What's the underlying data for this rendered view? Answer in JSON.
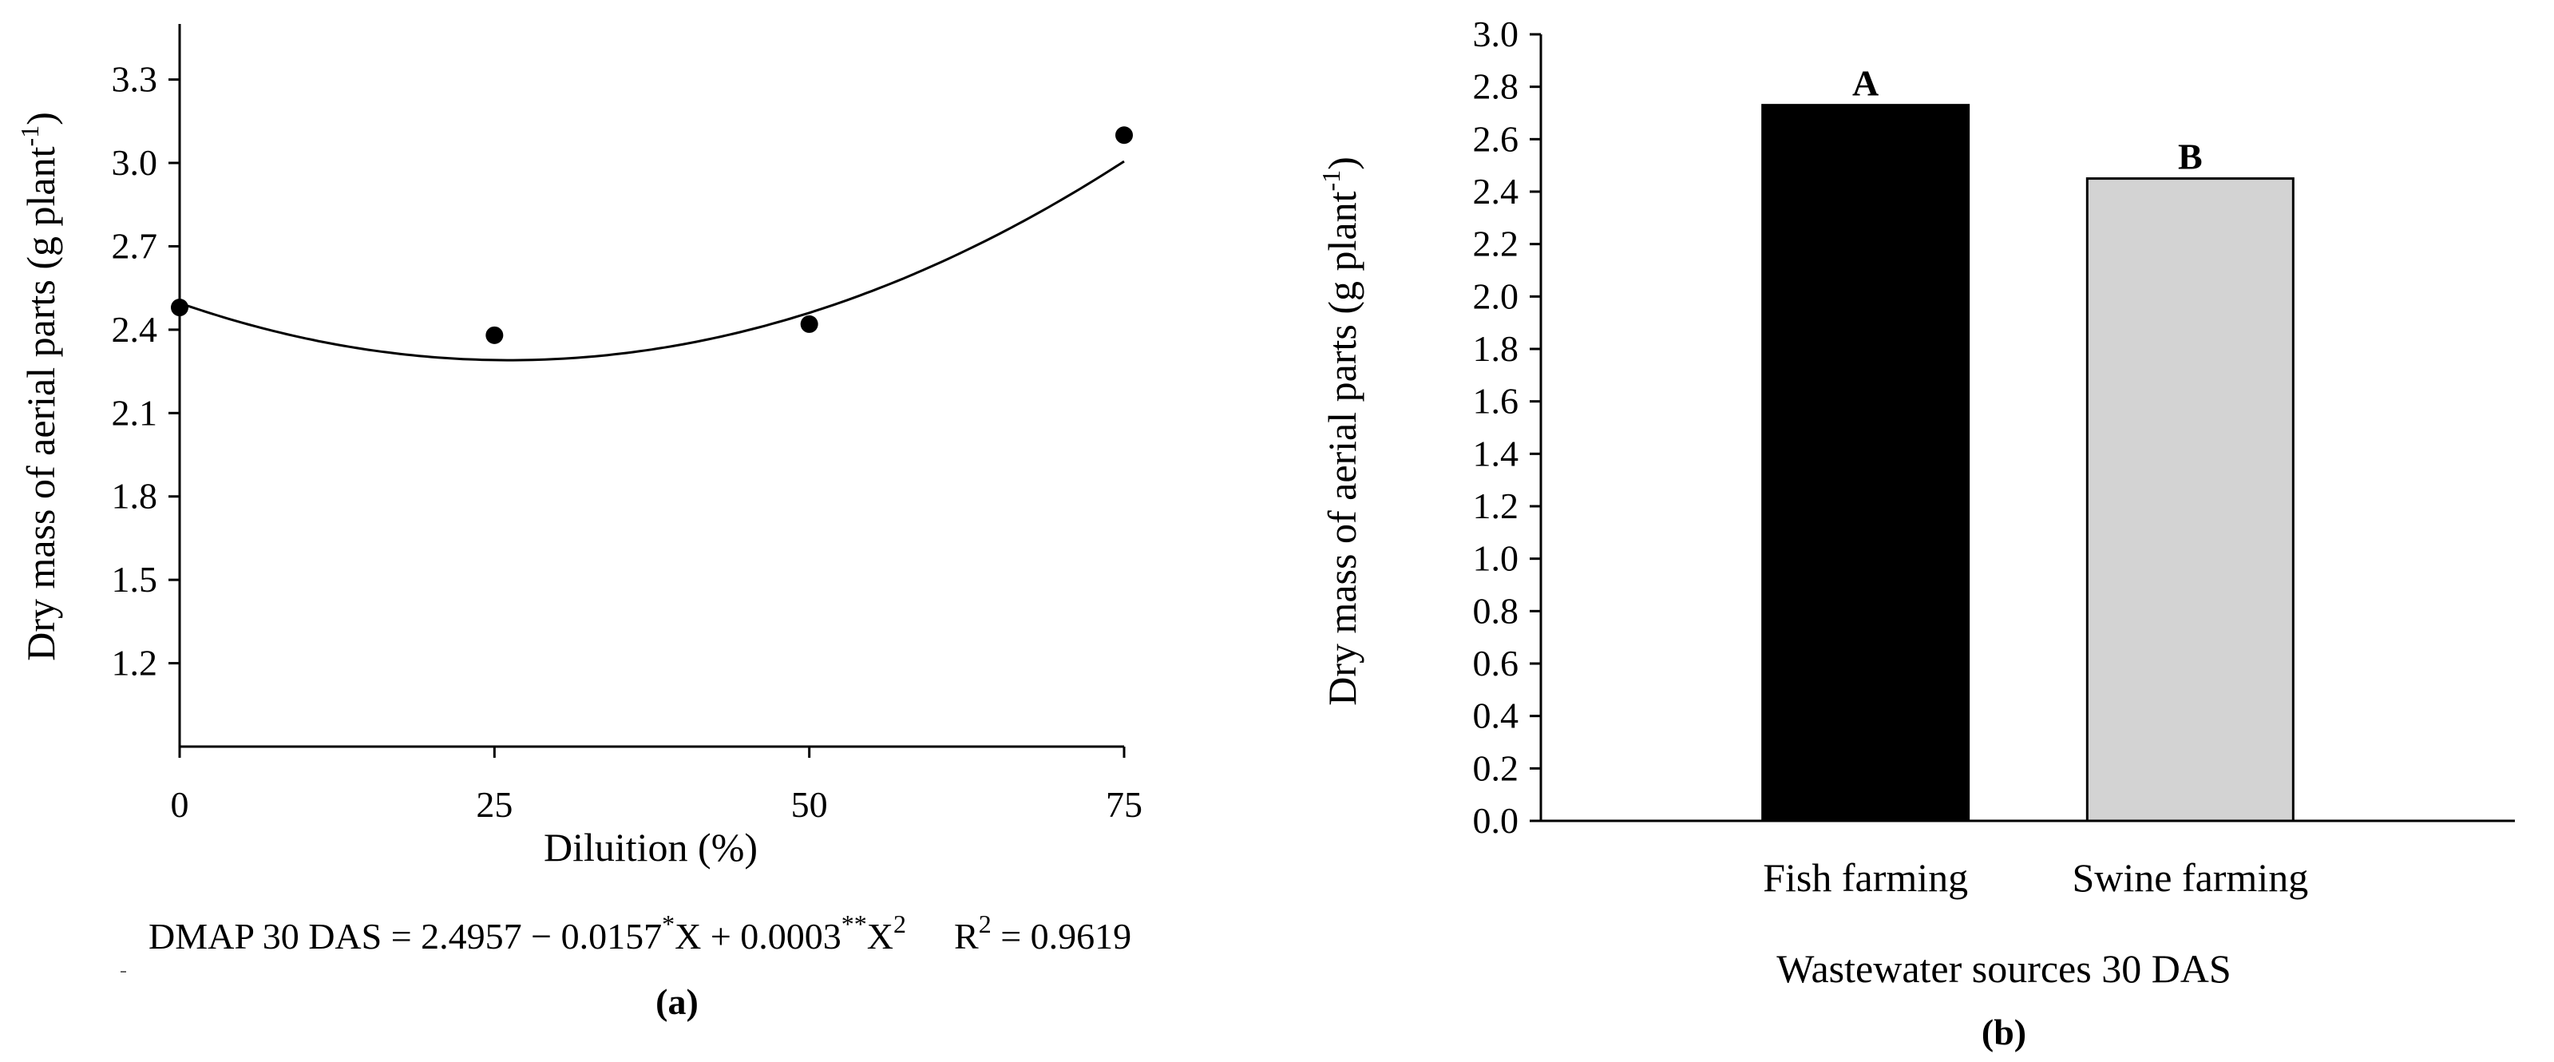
{
  "figure": {
    "equation": {
      "lhs": "DMAP 30 DAS = 2.4957 − 0.0157",
      "sig1": "*",
      "mid": "X + 0.0003",
      "sig2": "**",
      "x": "X",
      "exp2": "2",
      "r_prefix": "R",
      "r_exp": "2",
      "r_value": " = 0.9619"
    }
  },
  "chart_data": [
    {
      "panel": "(a)",
      "type": "scatter",
      "title": "",
      "xlabel": "Diluition (%)",
      "ylabel_main": "Dry mass of aerial parts (g plant",
      "ylabel_sup": "-1",
      "ylabel_close": ")",
      "xlim": [
        0,
        75
      ],
      "ylim": [
        0.9,
        3.5
      ],
      "x_ticks": [
        0,
        25,
        50,
        75
      ],
      "y_ticks": [
        1.2,
        1.5,
        1.8,
        2.1,
        2.4,
        2.7,
        3.0,
        3.3
      ],
      "points": [
        {
          "x": 0,
          "y": 2.48
        },
        {
          "x": 25,
          "y": 2.38
        },
        {
          "x": 50,
          "y": 2.42
        },
        {
          "x": 75,
          "y": 3.1
        }
      ],
      "fit": {
        "type": "quadratic",
        "coefficients": [
          2.4957,
          -0.0157,
          0.0003
        ]
      }
    },
    {
      "panel": "(b)",
      "type": "bar",
      "title": "",
      "xlabel": "Wastewater sources 30 DAS",
      "ylabel_main": "Dry mass of aerial parts (g plant",
      "ylabel_sup": "-1",
      "ylabel_close": ")",
      "ylim": [
        0.0,
        3.0
      ],
      "y_ticks": [
        0.0,
        0.2,
        0.4,
        0.6,
        0.8,
        1.0,
        1.2,
        1.4,
        1.6,
        1.8,
        2.0,
        2.2,
        2.4,
        2.6,
        2.8,
        3.0
      ],
      "categories": [
        "Fish farming",
        "Swine farming"
      ],
      "values": [
        2.73,
        2.45
      ],
      "letters": [
        "A",
        "B"
      ],
      "colors": [
        "#000000",
        "#d3d3d3"
      ]
    }
  ]
}
